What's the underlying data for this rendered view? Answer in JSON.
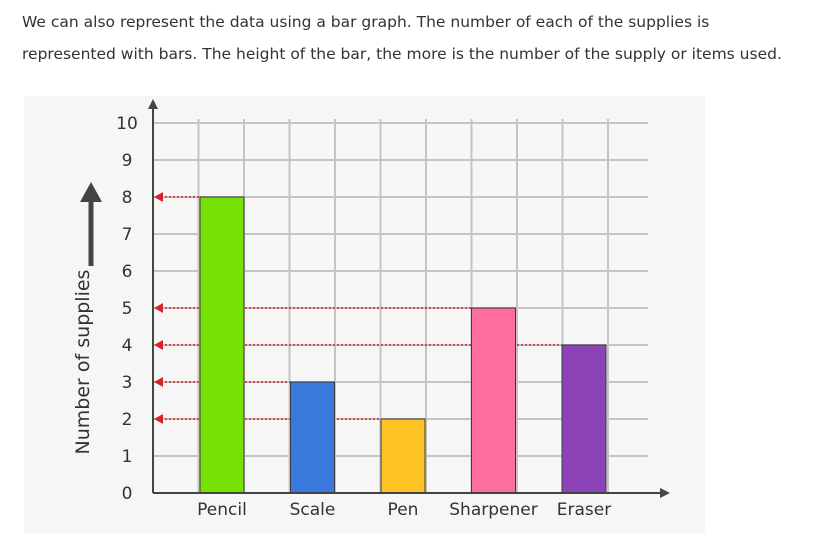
{
  "intro": {
    "line1": "We can also represent the data using a bar graph. The number of each of the supplies is",
    "line2": "represented with bars. The height of the bar, the more is the number of the supply or items used."
  },
  "chart_data": {
    "type": "bar",
    "categories": [
      "Pencil",
      "Scale",
      "Pen",
      "Sharpener",
      "Eraser"
    ],
    "values": [
      8,
      3,
      2,
      5,
      4
    ],
    "colors": [
      "#76e203",
      "#3a78dd",
      "#fec421",
      "#fd6e9c",
      "#8c43b8"
    ],
    "title": "",
    "xlabel": "",
    "ylabel": "Number of supplies",
    "ylim": [
      0,
      10
    ],
    "yticks": [
      0,
      1,
      2,
      3,
      4,
      5,
      6,
      7,
      8,
      9,
      10
    ],
    "grid": true,
    "legend": "none",
    "reference_arrows": [
      8,
      5,
      4,
      3,
      2
    ],
    "arrow_color": "#d8232a",
    "grid_color": "#c4c4c4",
    "axis_color": "#444444"
  }
}
